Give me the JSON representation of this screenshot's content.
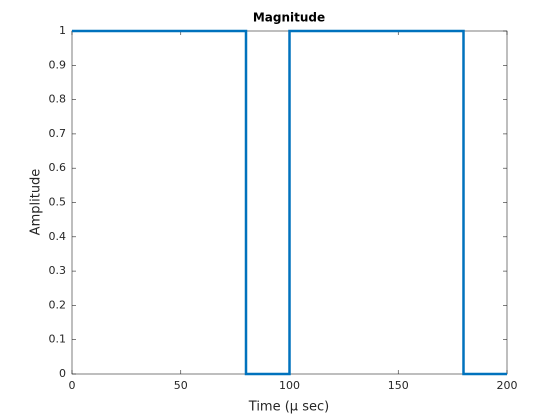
{
  "chart_data": {
    "type": "line",
    "title": "Magnitude",
    "x_label": "Time (μ sec)",
    "y_label": "Amplitude",
    "x": [
      0,
      80,
      80,
      100,
      100,
      180,
      180,
      200
    ],
    "series": [
      {
        "color": "#0072bd",
        "values": [
          1,
          1,
          0,
          0,
          1,
          1,
          0,
          0
        ]
      }
    ],
    "xlim": [
      0,
      200
    ],
    "xticks": [
      0,
      50,
      100,
      150,
      200
    ],
    "ylim": [
      0,
      1
    ],
    "yticks": [
      0,
      0.1,
      0.2,
      0.3,
      0.4,
      0.5,
      0.6,
      0.7,
      0.8,
      0.9,
      1
    ],
    "grid": false
  }
}
